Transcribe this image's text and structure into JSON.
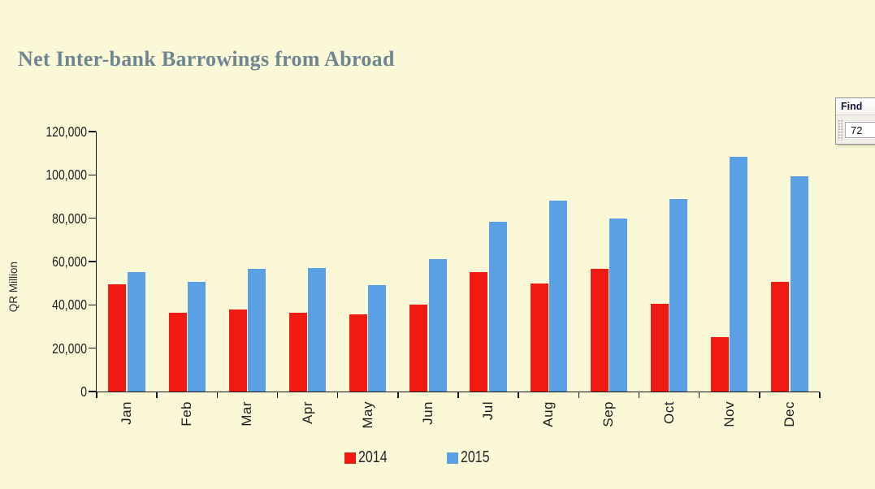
{
  "title": "Net Inter-bank Barrowings from Abroad",
  "find_panel": {
    "title": "Find",
    "input_value": "72"
  },
  "chart_data": {
    "type": "bar",
    "title": "Net Inter-bank Barrowings from Abroad",
    "categories": [
      "Jan",
      "Feb",
      "Mar",
      "Apr",
      "May",
      "Jun",
      "Jul",
      "Aug",
      "Sep",
      "Oct",
      "Nov",
      "Dec"
    ],
    "series": [
      {
        "name": "2014",
        "color": "#f01b12",
        "values": [
          49500,
          36500,
          38000,
          36500,
          35500,
          40000,
          55000,
          50000,
          56500,
          40500,
          25000,
          50500
        ]
      },
      {
        "name": "2015",
        "color": "#5b9fe4",
        "values": [
          55000,
          50500,
          56500,
          57000,
          49000,
          61000,
          78500,
          88000,
          80000,
          89000,
          108500,
          99500
        ]
      }
    ],
    "xlabel": "",
    "ylabel": "QR Million",
    "ylim": [
      0,
      120000
    ],
    "ytick_step": 20000,
    "ytick_labels": [
      "0",
      "20,000",
      "40,000",
      "60,000",
      "80,000",
      "100,000",
      "120,000"
    ],
    "grid": false,
    "legend_position": "bottom"
  },
  "colors": {
    "background": "#fbf8d8",
    "title_text": "#6e8692",
    "axis": "#161616",
    "series_2014": "#f01b12",
    "series_2015": "#5b9fe4"
  }
}
